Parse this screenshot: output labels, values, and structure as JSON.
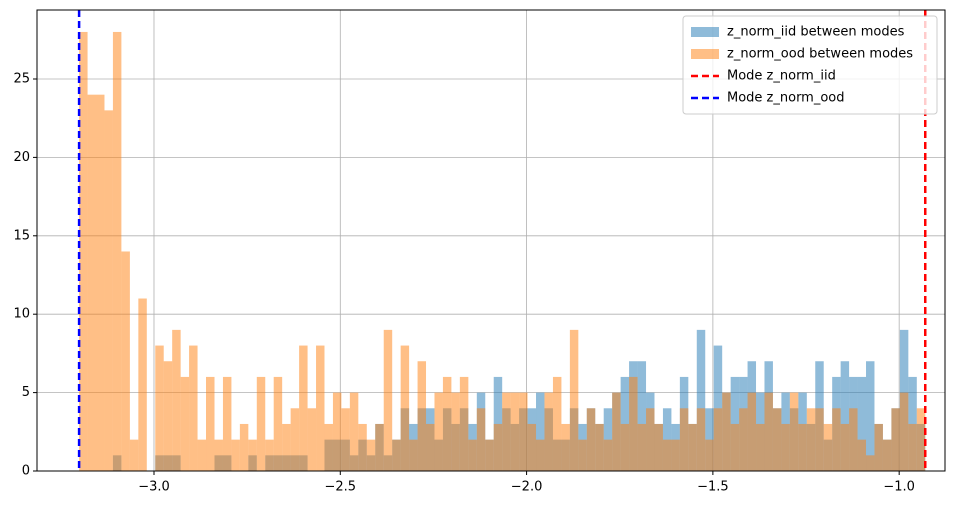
{
  "chart_data": {
    "type": "histogram",
    "bins": [
      -3.201,
      -3.1783,
      -3.1556,
      -3.1329,
      -3.1102,
      -3.0875,
      -3.0647,
      -3.042,
      -3.0193,
      -2.9966,
      -2.9739,
      -2.9512,
      -2.9285,
      -2.9058,
      -2.8831,
      -2.8604,
      -2.8376,
      -2.8149,
      -2.7922,
      -2.7695,
      -2.7468,
      -2.7241,
      -2.7014,
      -2.6787,
      -2.656,
      -2.6333,
      -2.6105,
      -2.5878,
      -2.5651,
      -2.5424,
      -2.5197,
      -2.497,
      -2.4743,
      -2.4516,
      -2.4289,
      -2.4062,
      -2.3834,
      -2.3607,
      -2.338,
      -2.3153,
      -2.2926,
      -2.2699,
      -2.2472,
      -2.2245,
      -2.2018,
      -2.1791,
      -2.1563,
      -2.1336,
      -2.1109,
      -2.0882,
      -2.0655,
      -2.0428,
      -2.0201,
      -1.9974,
      -1.9747,
      -1.952,
      -1.9292,
      -1.9065,
      -1.8838,
      -1.8611,
      -1.8384,
      -1.8157,
      -1.793,
      -1.7703,
      -1.7476,
      -1.7249,
      -1.7021,
      -1.6794,
      -1.6567,
      -1.634,
      -1.6113,
      -1.5886,
      -1.5659,
      -1.5432,
      -1.5205,
      -1.4978,
      -1.475,
      -1.4523,
      -1.4296,
      -1.4069,
      -1.3842,
      -1.3615,
      -1.3388,
      -1.3161,
      -1.2934,
      -1.2707,
      -1.2479,
      -1.2252,
      -1.2025,
      -1.1798,
      -1.1571,
      -1.1344,
      -1.1117,
      -1.089,
      -1.0663,
      -1.0436,
      -1.0208,
      -0.9981,
      -0.9754,
      -0.9527,
      -0.93
    ],
    "series": [
      {
        "name": "z_norm_iid between modes",
        "color": "#1f77b4",
        "values": [
          0,
          0,
          0,
          0,
          1,
          0,
          0,
          0,
          0,
          1,
          1,
          1,
          0,
          0,
          0,
          0,
          1,
          1,
          0,
          0,
          1,
          0,
          1,
          1,
          1,
          1,
          1,
          0,
          0,
          2,
          2,
          2,
          1,
          2,
          1,
          3,
          1,
          2,
          4,
          3,
          4,
          4,
          2,
          4,
          3,
          4,
          3,
          5,
          2,
          6,
          4,
          3,
          4,
          4,
          5,
          4,
          2,
          2,
          4,
          3,
          4,
          3,
          4,
          5,
          6,
          7,
          7,
          5,
          3,
          4,
          3,
          6,
          3,
          9,
          4,
          8,
          5,
          6,
          6,
          7,
          5,
          7,
          4,
          5,
          4,
          5,
          3,
          7,
          2,
          6,
          7,
          6,
          6,
          7,
          3,
          2,
          4,
          9,
          6,
          3
        ]
      },
      {
        "name": "z_norm_ood between modes",
        "color": "#ff7f0e",
        "values": [
          28,
          24,
          24,
          23,
          28,
          14,
          2,
          11,
          0,
          8,
          7,
          9,
          6,
          8,
          2,
          6,
          2,
          6,
          2,
          3,
          2,
          6,
          2,
          6,
          3,
          4,
          8,
          4,
          8,
          3,
          5,
          4,
          5,
          3,
          2,
          3,
          9,
          2,
          8,
          2,
          7,
          3,
          5,
          6,
          5,
          6,
          2,
          4,
          2,
          3,
          5,
          5,
          5,
          3,
          2,
          5,
          6,
          3,
          9,
          2,
          4,
          3,
          2,
          5,
          3,
          6,
          3,
          4,
          3,
          2,
          2,
          4,
          3,
          4,
          2,
          4,
          5,
          3,
          4,
          5,
          3,
          5,
          4,
          3,
          5,
          3,
          4,
          4,
          3,
          4,
          3,
          4,
          2,
          1,
          3,
          2,
          4,
          5,
          3,
          4
        ]
      }
    ],
    "vlines": [
      {
        "name": "Mode z_norm_iid",
        "color": "#ff0000",
        "x": -0.93
      },
      {
        "name": "Mode z_norm_ood",
        "color": "#0000ff",
        "x": -3.201
      }
    ],
    "xlim": [
      -3.314,
      -0.877
    ],
    "ylim": [
      0,
      29.4
    ],
    "xticks": [
      {
        "value": -3.0,
        "label": "−3.0"
      },
      {
        "value": -2.5,
        "label": "−2.5"
      },
      {
        "value": -2.0,
        "label": "−2.0"
      },
      {
        "value": -1.5,
        "label": "−1.5"
      },
      {
        "value": -1.0,
        "label": "−1.0"
      }
    ],
    "yticks": [
      0,
      5,
      10,
      15,
      20,
      25
    ],
    "grid": true,
    "legend": "upper right"
  }
}
